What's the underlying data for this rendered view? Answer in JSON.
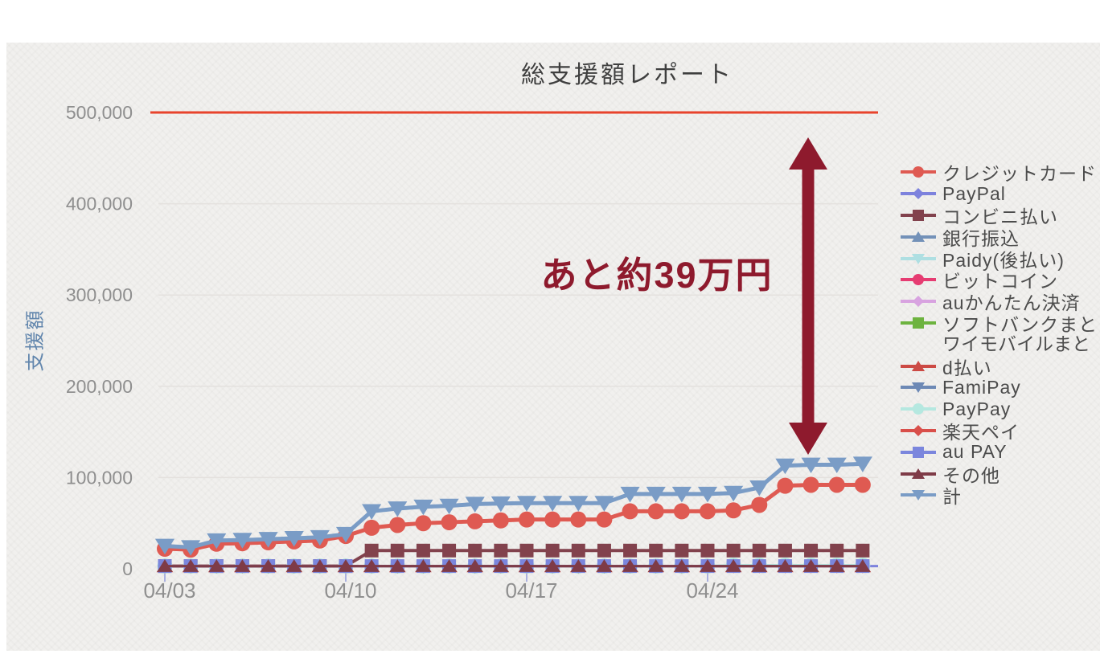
{
  "chart_data": {
    "type": "line",
    "title": "総支援額レポート",
    "ylabel": "支援額",
    "xlabel": "",
    "ylim": [
      0,
      500000
    ],
    "yticks": [
      {
        "value": 0,
        "label": "0"
      },
      {
        "value": 100000,
        "label": "100,000"
      },
      {
        "value": 200000,
        "label": "200,000"
      },
      {
        "value": 300000,
        "label": "300,000"
      },
      {
        "value": 400000,
        "label": "400,000"
      },
      {
        "value": 500000,
        "label": "500,000"
      }
    ],
    "xticks": [
      {
        "day": 0,
        "label": "04/03"
      },
      {
        "day": 7,
        "label": "04/10"
      },
      {
        "day": 14,
        "label": "04/17"
      },
      {
        "day": 21,
        "label": "04/24"
      }
    ],
    "x_range_days": 28,
    "grid": "horizontal",
    "legend_position": "right",
    "goal_line": {
      "value": 500000,
      "color": "#e8432c"
    },
    "series": [
      {
        "name": "クレジットカード",
        "marker": "circle",
        "color": "#df5a52",
        "width": 5,
        "size": 20,
        "values": [
          22000,
          21000,
          27500,
          28000,
          29000,
          30000,
          31000,
          36000,
          45000,
          48000,
          50000,
          51000,
          52000,
          53000,
          54000,
          54000,
          54000,
          54000,
          63000,
          63000,
          63000,
          63000,
          64000,
          70000,
          91000,
          92000,
          92000,
          92000
        ]
      },
      {
        "name": "PayPal",
        "marker": "diamond",
        "color": "#7d82dd",
        "width": 3,
        "size": 14,
        "flat": 3000,
        "extend_right": true
      },
      {
        "name": "コンビニ払い",
        "marker": "square",
        "color": "#82424d",
        "width": 4,
        "size": 17,
        "values": [
          3000,
          3000,
          3000,
          3000,
          3000,
          3000,
          3000,
          3000,
          20000,
          20000,
          20000,
          20000,
          20000,
          20000,
          20000,
          20000,
          20000,
          20000,
          20000,
          20000,
          20000,
          20000,
          20000,
          20000,
          20000,
          20000,
          20000,
          20000
        ]
      },
      {
        "name": "銀行振込",
        "marker": "triangle-up",
        "color": "#7391b8",
        "width": 3,
        "size": 15,
        "flat": 3000
      },
      {
        "name": "Paidy(後払い)",
        "marker": "triangle-down",
        "color": "#aedfe2",
        "width": 3,
        "size": 15,
        "flat": 3000
      },
      {
        "name": "ビットコイン",
        "marker": "circle",
        "color": "#e63c72",
        "width": 3,
        "size": 15,
        "flat": 3000
      },
      {
        "name": "auかんたん決済",
        "marker": "diamond",
        "color": "#d8a3e0",
        "width": 3,
        "size": 13,
        "flat": 3000
      },
      {
        "name": "ソフトバンクまと",
        "marker": "square",
        "color": "#6db33f",
        "width": 3,
        "size": 15,
        "flat": 3000,
        "legend_lines": [
          "ソフトバンクまと",
          "ワイモバイルまと"
        ]
      },
      {
        "name": "d払い",
        "marker": "triangle-up",
        "color": "#cc4a44",
        "width": 3,
        "size": 18,
        "flat": 3000
      },
      {
        "name": "FamiPay",
        "marker": "triangle-down",
        "color": "#6d89b5",
        "width": 3,
        "size": 15,
        "flat": 3000
      },
      {
        "name": "PayPay",
        "marker": "circle",
        "color": "#b5e8e0",
        "width": 3,
        "size": 19,
        "values": [
          3000,
          3000,
          3000,
          3000,
          3000,
          3000,
          3000,
          3000,
          3000,
          3000,
          3000,
          3000,
          3000,
          3000,
          3000,
          3000,
          3000,
          3000,
          3000,
          3000,
          3000,
          3000,
          4000,
          4000,
          4000,
          4000,
          4000,
          4000
        ]
      },
      {
        "name": "楽天ペイ",
        "marker": "diamond",
        "color": "#d94f4a",
        "width": 3,
        "size": 18,
        "flat": 3000
      },
      {
        "name": "au PAY",
        "marker": "square",
        "color": "#7b86dd",
        "width": 3,
        "size": 17,
        "flat": 3000
      },
      {
        "name": "その他",
        "marker": "triangle-up",
        "color": "#7e3b47",
        "width": 3,
        "size": 17,
        "flat": 3000
      },
      {
        "name": "計",
        "marker": "triangle-down",
        "color": "#7a9cc6",
        "width": 5,
        "size": 21,
        "values": [
          25000,
          23500,
          31000,
          31500,
          32500,
          33500,
          34500,
          38000,
          63000,
          66000,
          68000,
          69000,
          71000,
          71500,
          72000,
          72000,
          72000,
          72000,
          82000,
          82000,
          82000,
          82000,
          83000,
          89000,
          113000,
          114000,
          114000,
          115000
        ]
      }
    ]
  },
  "annotation": {
    "text": "あと約39万円",
    "color": "#8e1a2d",
    "arrow": "double-headed-vertical"
  },
  "style_colors": {
    "panel_bg": "#f1f0ee",
    "grid": "#e4e1de",
    "tick_text": "#8f8f8f",
    "axis_tick_mark": "#aab0e0",
    "y_axis_title": "#6286ad",
    "title_text": "#3f3f3f"
  }
}
